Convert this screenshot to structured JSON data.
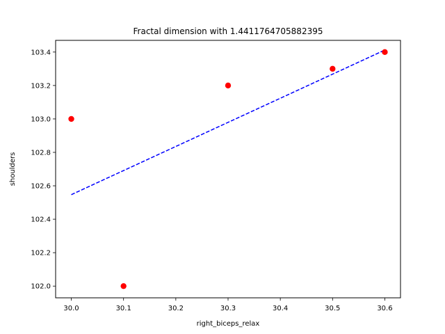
{
  "chart_data": {
    "type": "scatter",
    "title": "Fractal dimension with 1.4411764705882395",
    "xlabel": "right_biceps_relax",
    "ylabel": "shoulders",
    "xlim": [
      29.97,
      30.63
    ],
    "ylim": [
      101.93,
      103.47
    ],
    "x_ticks": [
      "30.0",
      "30.1",
      "30.2",
      "30.3",
      "30.4",
      "30.5",
      "30.6"
    ],
    "y_ticks": [
      "102.0",
      "102.2",
      "102.4",
      "102.6",
      "102.8",
      "103.0",
      "103.2",
      "103.4"
    ],
    "grid": false,
    "series": [
      {
        "type": "scatter",
        "color": "#ff0000",
        "points": [
          [
            30.0,
            103.0
          ],
          [
            30.1,
            102.0
          ],
          [
            30.3,
            103.2
          ],
          [
            30.5,
            103.3
          ],
          [
            30.6,
            103.4
          ]
        ]
      },
      {
        "type": "line",
        "style": "dashed",
        "color": "#0000ff",
        "points": [
          [
            30.0,
            102.547
          ],
          [
            30.6,
            103.412
          ]
        ]
      }
    ]
  }
}
